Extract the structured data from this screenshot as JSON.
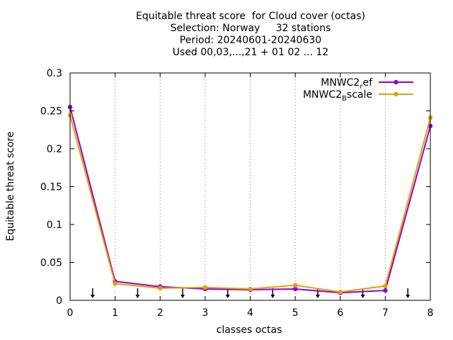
{
  "chart_data": {
    "type": "line",
    "title_lines": [
      "Equitable threat score  for Cloud cover (octas)",
      "Selection: Norway     32 stations",
      "Period: 20240601-20240630",
      "Used 00,03,...,21 + 01 02 ... 12"
    ],
    "xlabel": "classes octas",
    "ylabel": "Equitable threat score",
    "xlim": [
      0,
      8
    ],
    "ylim": [
      0,
      0.3
    ],
    "xticks": [
      0,
      1,
      2,
      3,
      4,
      5,
      6,
      7,
      8
    ],
    "yticks": [
      0,
      0.05,
      0.1,
      0.15,
      0.2,
      0.25,
      0.3
    ],
    "ytick_labels": [
      "0",
      "0.05",
      "0.1",
      "0.15",
      "0.2",
      "0.25",
      "0.3"
    ],
    "grid": "vertical dotted at x ticks",
    "legend_position": "top-right",
    "x": [
      0,
      1,
      2,
      3,
      4,
      5,
      6,
      7,
      8
    ],
    "series": [
      {
        "legend_base": "MNWC2",
        "legend_sub": "r",
        "legend_tail": "ef",
        "color": "#9400d3",
        "values": [
          0.255,
          0.025,
          0.018,
          0.015,
          0.014,
          0.015,
          0.01,
          0.013,
          0.23
        ]
      },
      {
        "legend_base": "MNWC2",
        "legend_sub": "B",
        "legend_tail": "scale",
        "color": "#e69f00",
        "values": [
          0.244,
          0.022,
          0.016,
          0.017,
          0.015,
          0.02,
          0.011,
          0.019,
          0.241
        ]
      }
    ],
    "arrows_x": [
      0.5,
      1.5,
      2.5,
      3.5,
      4.5,
      5.5,
      6.5,
      7.5
    ]
  }
}
